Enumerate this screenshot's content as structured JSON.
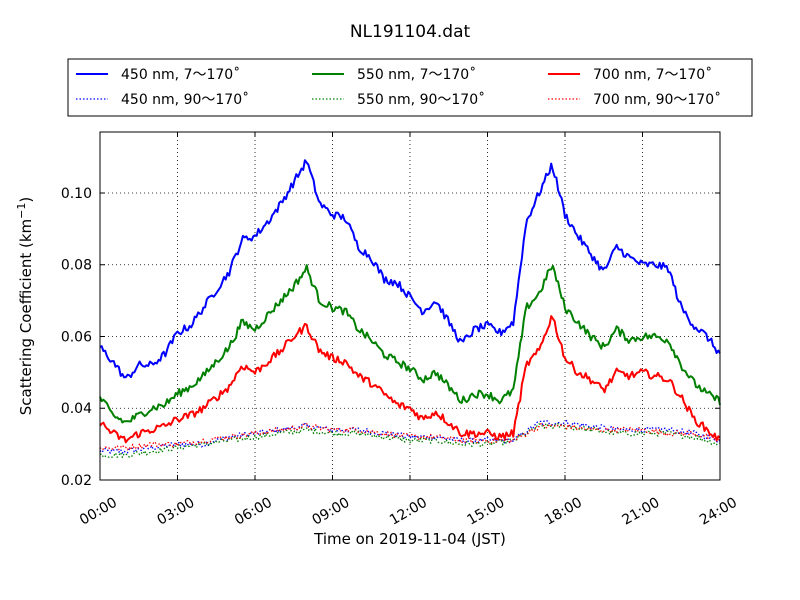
{
  "chart_data": {
    "type": "line",
    "title": "NL191104.dat",
    "xlabel": "Time on 2019-11-04 (JST)",
    "ylabel_main": "Scattering Coefficient (km",
    "ylabel_sup": "−1",
    "ylabel_end": ")",
    "xlim": [
      0,
      24
    ],
    "ylim": [
      0.02,
      0.117
    ],
    "grid": true,
    "legend_placement": "top, above plot",
    "xticks": [
      {
        "value": 0,
        "label": "00:00"
      },
      {
        "value": 3,
        "label": "03:00"
      },
      {
        "value": 6,
        "label": "06:00"
      },
      {
        "value": 9,
        "label": "09:00"
      },
      {
        "value": 12,
        "label": "12:00"
      },
      {
        "value": 15,
        "label": "15:00"
      },
      {
        "value": 18,
        "label": "18:00"
      },
      {
        "value": 21,
        "label": "21:00"
      },
      {
        "value": 24,
        "label": "24:00"
      }
    ],
    "yticks": [
      {
        "value": 0.02,
        "label": "0.02"
      },
      {
        "value": 0.04,
        "label": "0.04"
      },
      {
        "value": 0.06,
        "label": "0.06"
      },
      {
        "value": 0.08,
        "label": "0.08"
      },
      {
        "value": 0.1,
        "label": "0.10"
      }
    ],
    "series": [
      {
        "name": "450 nm, 7～170˚",
        "color": "#0000ff",
        "style": "solid",
        "x": [
          0,
          0.5,
          1,
          1.5,
          2,
          2.5,
          3,
          3.5,
          4,
          4.5,
          5,
          5.5,
          6,
          6.5,
          7,
          7.5,
          8,
          8.5,
          9,
          9.5,
          10,
          10.5,
          11,
          11.5,
          12,
          12.5,
          13,
          13.5,
          14,
          14.5,
          15,
          15.5,
          16,
          16.5,
          17,
          17.5,
          18,
          18.5,
          19,
          19.5,
          20,
          20.5,
          21,
          21.5,
          22,
          22.5,
          23,
          23.5,
          24
        ],
        "y": [
          0.057,
          0.053,
          0.048,
          0.052,
          0.052,
          0.055,
          0.061,
          0.063,
          0.068,
          0.073,
          0.078,
          0.087,
          0.088,
          0.092,
          0.097,
          0.103,
          0.109,
          0.097,
          0.094,
          0.093,
          0.085,
          0.082,
          0.076,
          0.075,
          0.071,
          0.067,
          0.07,
          0.064,
          0.058,
          0.062,
          0.063,
          0.061,
          0.064,
          0.092,
          0.1,
          0.108,
          0.094,
          0.088,
          0.083,
          0.078,
          0.085,
          0.082,
          0.08,
          0.08,
          0.079,
          0.068,
          0.063,
          0.06,
          0.055
        ]
      },
      {
        "name": "550 nm, 7～170˚",
        "color": "#008000",
        "style": "solid",
        "x": [
          0,
          0.5,
          1,
          1.5,
          2,
          2.5,
          3,
          3.5,
          4,
          4.5,
          5,
          5.5,
          6,
          6.5,
          7,
          7.5,
          8,
          8.5,
          9,
          9.5,
          10,
          10.5,
          11,
          11.5,
          12,
          12.5,
          13,
          13.5,
          14,
          14.5,
          15,
          15.5,
          16,
          16.5,
          17,
          17.5,
          18,
          18.5,
          19,
          19.5,
          20,
          20.5,
          21,
          21.5,
          22,
          22.5,
          23,
          23.5,
          24
        ],
        "y": [
          0.043,
          0.038,
          0.036,
          0.038,
          0.04,
          0.041,
          0.044,
          0.046,
          0.049,
          0.053,
          0.057,
          0.064,
          0.062,
          0.066,
          0.07,
          0.074,
          0.079,
          0.07,
          0.068,
          0.067,
          0.062,
          0.059,
          0.055,
          0.053,
          0.051,
          0.048,
          0.05,
          0.046,
          0.042,
          0.044,
          0.044,
          0.042,
          0.045,
          0.068,
          0.072,
          0.08,
          0.068,
          0.064,
          0.06,
          0.057,
          0.062,
          0.059,
          0.06,
          0.06,
          0.059,
          0.052,
          0.047,
          0.044,
          0.042
        ]
      },
      {
        "name": "700 nm, 7～170˚",
        "color": "#ff0000",
        "style": "solid",
        "x": [
          0,
          0.5,
          1,
          1.5,
          2,
          2.5,
          3,
          3.5,
          4,
          4.5,
          5,
          5.5,
          6,
          6.5,
          7,
          7.5,
          8,
          8.5,
          9,
          9.5,
          10,
          10.5,
          11,
          11.5,
          12,
          12.5,
          13,
          13.5,
          14,
          14.5,
          15,
          15.5,
          16,
          16.5,
          17,
          17.5,
          18,
          18.5,
          19,
          19.5,
          20,
          20.5,
          21,
          21.5,
          22,
          22.5,
          23,
          23.5,
          24
        ],
        "y": [
          0.036,
          0.033,
          0.031,
          0.033,
          0.034,
          0.035,
          0.037,
          0.038,
          0.04,
          0.043,
          0.046,
          0.052,
          0.05,
          0.053,
          0.056,
          0.06,
          0.063,
          0.056,
          0.054,
          0.053,
          0.049,
          0.047,
          0.044,
          0.041,
          0.04,
          0.037,
          0.039,
          0.036,
          0.033,
          0.033,
          0.033,
          0.032,
          0.033,
          0.052,
          0.056,
          0.066,
          0.054,
          0.05,
          0.048,
          0.045,
          0.05,
          0.049,
          0.05,
          0.049,
          0.048,
          0.043,
          0.037,
          0.034,
          0.031
        ]
      },
      {
        "name": "450 nm, 90～170˚",
        "color": "#0000ff",
        "style": "dotted",
        "x": [
          0,
          1,
          2,
          3,
          4,
          5,
          6,
          7,
          8,
          9,
          10,
          11,
          12,
          13,
          14,
          15,
          16,
          17,
          18,
          19,
          20,
          21,
          22,
          23,
          24
        ],
        "y": [
          0.028,
          0.028,
          0.029,
          0.03,
          0.03,
          0.032,
          0.033,
          0.034,
          0.035,
          0.034,
          0.034,
          0.033,
          0.032,
          0.032,
          0.031,
          0.031,
          0.031,
          0.036,
          0.036,
          0.035,
          0.034,
          0.034,
          0.034,
          0.033,
          0.031
        ]
      },
      {
        "name": "550 nm, 90～170˚",
        "color": "#008000",
        "style": "dotted",
        "x": [
          0,
          1,
          2,
          3,
          4,
          5,
          6,
          7,
          8,
          9,
          10,
          11,
          12,
          13,
          14,
          15,
          16,
          17,
          18,
          19,
          20,
          21,
          22,
          23,
          24
        ],
        "y": [
          0.027,
          0.027,
          0.028,
          0.029,
          0.03,
          0.031,
          0.032,
          0.033,
          0.034,
          0.033,
          0.033,
          0.032,
          0.031,
          0.031,
          0.03,
          0.03,
          0.031,
          0.035,
          0.035,
          0.034,
          0.033,
          0.033,
          0.033,
          0.032,
          0.03
        ]
      },
      {
        "name": "700 nm, 90～170˚",
        "color": "#ff0000",
        "style": "dotted",
        "x": [
          0,
          1,
          2,
          3,
          4,
          5,
          6,
          7,
          8,
          9,
          10,
          11,
          12,
          13,
          14,
          15,
          16,
          17,
          18,
          19,
          20,
          21,
          22,
          23,
          24
        ],
        "y": [
          0.029,
          0.029,
          0.03,
          0.03,
          0.031,
          0.032,
          0.033,
          0.034,
          0.035,
          0.034,
          0.034,
          0.033,
          0.032,
          0.032,
          0.031,
          0.031,
          0.031,
          0.035,
          0.035,
          0.034,
          0.034,
          0.034,
          0.033,
          0.033,
          0.031
        ]
      }
    ]
  }
}
